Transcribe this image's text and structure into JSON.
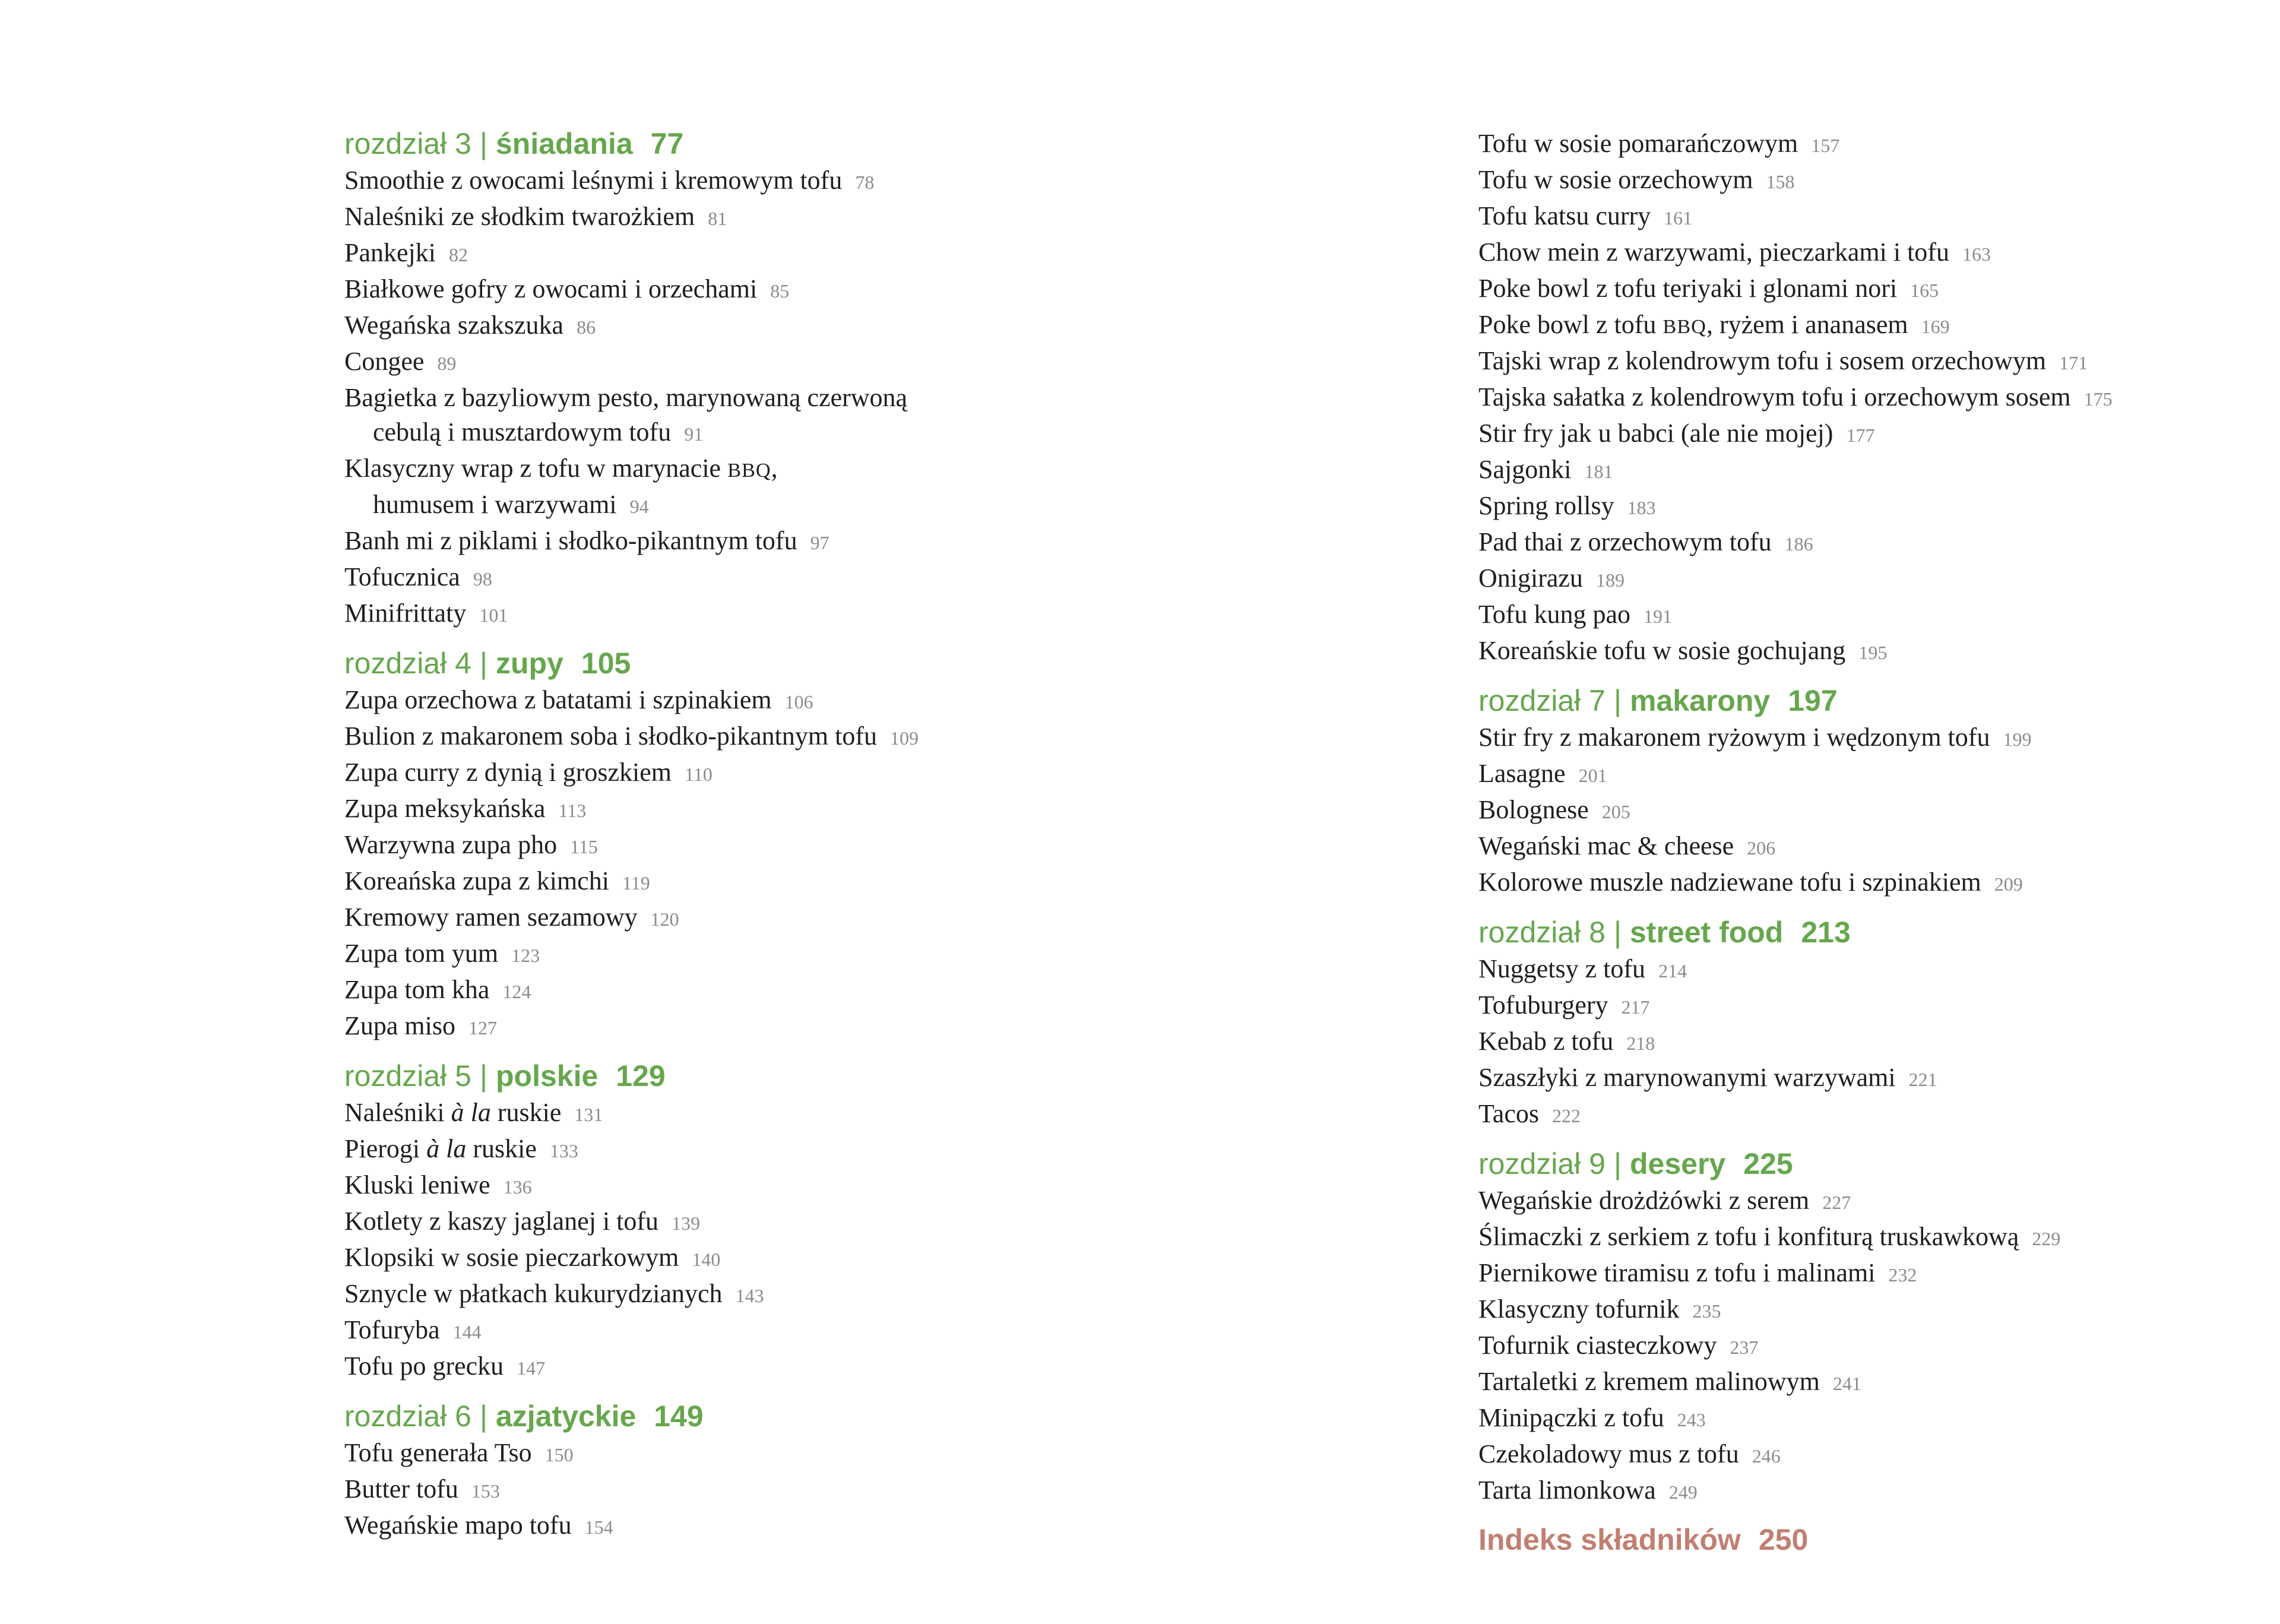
{
  "colors": {
    "background": "#ffffff",
    "chapter_green": "#66a74d",
    "index_salmon": "#c17f71",
    "entry_text": "#1f1f1f",
    "page_number_gray": "#8b8b8b"
  },
  "toc": {
    "columns": [
      {
        "name": "left",
        "blocks": [
          {
            "type": "chapter",
            "prefix": "rozdział 3",
            "separator": "|",
            "name": "śniadania",
            "page": "77"
          },
          {
            "type": "entry",
            "lines": [
              [
                {
                  "t": "Smoothie z owocami leśnymi i kremowym tofu"
                }
              ]
            ],
            "page": "78"
          },
          {
            "type": "entry",
            "lines": [
              [
                {
                  "t": "Naleśniki ze słodkim twarożkiem"
                }
              ]
            ],
            "page": "81"
          },
          {
            "type": "entry",
            "lines": [
              [
                {
                  "t": "Pankejki"
                }
              ]
            ],
            "page": "82"
          },
          {
            "type": "entry",
            "lines": [
              [
                {
                  "t": "Białkowe gofry z owocami i orzechami"
                }
              ]
            ],
            "page": "85"
          },
          {
            "type": "entry",
            "lines": [
              [
                {
                  "t": "Wegańska szakszuka"
                }
              ]
            ],
            "page": "86"
          },
          {
            "type": "entry",
            "lines": [
              [
                {
                  "t": "Congee"
                }
              ]
            ],
            "page": "89"
          },
          {
            "type": "entry",
            "lines": [
              [
                {
                  "t": "Bagietka z bazyliowym pesto, marynowaną czerwoną"
                }
              ],
              [
                {
                  "t": "cebulą i musztardowym tofu"
                }
              ]
            ],
            "page": "91"
          },
          {
            "type": "entry",
            "lines": [
              [
                {
                  "t": "Klasyczny wrap z tofu w marynacie "
                },
                {
                  "t": "BBQ",
                  "style": "smallcaps"
                },
                {
                  "t": ","
                }
              ],
              [
                {
                  "t": "humusem i warzywami"
                }
              ]
            ],
            "page": "94"
          },
          {
            "type": "entry",
            "lines": [
              [
                {
                  "t": "Banh mi z piklami i słodko-pikantnym tofu"
                }
              ]
            ],
            "page": "97"
          },
          {
            "type": "entry",
            "lines": [
              [
                {
                  "t": "Tofucznica"
                }
              ]
            ],
            "page": "98"
          },
          {
            "type": "entry",
            "lines": [
              [
                {
                  "t": "Minifrittaty"
                }
              ]
            ],
            "page": "101"
          },
          {
            "type": "chapter",
            "prefix": "rozdział 4",
            "separator": "|",
            "name": "zupy",
            "page": "105"
          },
          {
            "type": "entry",
            "lines": [
              [
                {
                  "t": "Zupa orzechowa z batatami i szpinakiem"
                }
              ]
            ],
            "page": "106"
          },
          {
            "type": "entry",
            "lines": [
              [
                {
                  "t": "Bulion z makaronem soba i słodko-pikantnym tofu"
                }
              ]
            ],
            "page": "109"
          },
          {
            "type": "entry",
            "lines": [
              [
                {
                  "t": "Zupa curry z dynią i groszkiem"
                }
              ]
            ],
            "page": "110"
          },
          {
            "type": "entry",
            "lines": [
              [
                {
                  "t": "Zupa meksykańska"
                }
              ]
            ],
            "page": "113"
          },
          {
            "type": "entry",
            "lines": [
              [
                {
                  "t": "Warzywna zupa pho"
                }
              ]
            ],
            "page": "115"
          },
          {
            "type": "entry",
            "lines": [
              [
                {
                  "t": "Koreańska zupa z kimchi"
                }
              ]
            ],
            "page": "119"
          },
          {
            "type": "entry",
            "lines": [
              [
                {
                  "t": "Kremowy ramen sezamowy"
                }
              ]
            ],
            "page": "120"
          },
          {
            "type": "entry",
            "lines": [
              [
                {
                  "t": "Zupa tom yum"
                }
              ]
            ],
            "page": "123"
          },
          {
            "type": "entry",
            "lines": [
              [
                {
                  "t": "Zupa tom kha"
                }
              ]
            ],
            "page": "124"
          },
          {
            "type": "entry",
            "lines": [
              [
                {
                  "t": "Zupa miso"
                }
              ]
            ],
            "page": "127"
          },
          {
            "type": "chapter",
            "prefix": "rozdział 5",
            "separator": "|",
            "name": "polskie",
            "page": "129"
          },
          {
            "type": "entry",
            "lines": [
              [
                {
                  "t": "Naleśniki "
                },
                {
                  "t": "à la",
                  "style": "italic"
                },
                {
                  "t": " ruskie"
                }
              ]
            ],
            "page": "131"
          },
          {
            "type": "entry",
            "lines": [
              [
                {
                  "t": "Pierogi "
                },
                {
                  "t": "à la",
                  "style": "italic"
                },
                {
                  "t": " ruskie"
                }
              ]
            ],
            "page": "133"
          },
          {
            "type": "entry",
            "lines": [
              [
                {
                  "t": "Kluski leniwe"
                }
              ]
            ],
            "page": "136"
          },
          {
            "type": "entry",
            "lines": [
              [
                {
                  "t": "Kotlety z kaszy jaglanej i tofu"
                }
              ]
            ],
            "page": "139"
          },
          {
            "type": "entry",
            "lines": [
              [
                {
                  "t": "Klopsiki w sosie pieczarkowym"
                }
              ]
            ],
            "page": "140"
          },
          {
            "type": "entry",
            "lines": [
              [
                {
                  "t": "Sznycle w płatkach kukurydzianych"
                }
              ]
            ],
            "page": "143"
          },
          {
            "type": "entry",
            "lines": [
              [
                {
                  "t": "Tofuryba"
                }
              ]
            ],
            "page": "144"
          },
          {
            "type": "entry",
            "lines": [
              [
                {
                  "t": "Tofu po grecku"
                }
              ]
            ],
            "page": "147"
          },
          {
            "type": "chapter",
            "prefix": "rozdział 6",
            "separator": "|",
            "name": "azjatyckie",
            "page": "149"
          },
          {
            "type": "entry",
            "lines": [
              [
                {
                  "t": "Tofu generała Tso"
                }
              ]
            ],
            "page": "150"
          },
          {
            "type": "entry",
            "lines": [
              [
                {
                  "t": "Butter tofu"
                }
              ]
            ],
            "page": "153"
          },
          {
            "type": "entry",
            "lines": [
              [
                {
                  "t": "Wegańskie mapo tofu"
                }
              ]
            ],
            "page": "154"
          }
        ]
      },
      {
        "name": "right",
        "blocks": [
          {
            "type": "entry",
            "lines": [
              [
                {
                  "t": "Tofu w sosie pomarańczowym"
                }
              ]
            ],
            "page": "157"
          },
          {
            "type": "entry",
            "lines": [
              [
                {
                  "t": "Tofu w sosie orzechowym"
                }
              ]
            ],
            "page": "158"
          },
          {
            "type": "entry",
            "lines": [
              [
                {
                  "t": "Tofu katsu curry"
                }
              ]
            ],
            "page": "161"
          },
          {
            "type": "entry",
            "lines": [
              [
                {
                  "t": "Chow mein z warzywami, pieczarkami i tofu"
                }
              ]
            ],
            "page": "163"
          },
          {
            "type": "entry",
            "lines": [
              [
                {
                  "t": "Poke bowl z tofu teriyaki i glonami nori"
                }
              ]
            ],
            "page": "165"
          },
          {
            "type": "entry",
            "lines": [
              [
                {
                  "t": "Poke bowl z tofu "
                },
                {
                  "t": "BBQ",
                  "style": "smallcaps"
                },
                {
                  "t": ", ryżem i ananasem"
                }
              ]
            ],
            "page": "169"
          },
          {
            "type": "entry",
            "lines": [
              [
                {
                  "t": "Tajski wrap z kolendrowym tofu i sosem orzechowym"
                }
              ]
            ],
            "page": "171"
          },
          {
            "type": "entry",
            "lines": [
              [
                {
                  "t": "Tajska sałatka z kolendrowym tofu i orzechowym sosem"
                }
              ]
            ],
            "page": "175"
          },
          {
            "type": "entry",
            "lines": [
              [
                {
                  "t": "Stir fry jak u babci (ale nie mojej)"
                }
              ]
            ],
            "page": "177"
          },
          {
            "type": "entry",
            "lines": [
              [
                {
                  "t": "Sajgonki"
                }
              ]
            ],
            "page": "181"
          },
          {
            "type": "entry",
            "lines": [
              [
                {
                  "t": "Spring rollsy"
                }
              ]
            ],
            "page": "183"
          },
          {
            "type": "entry",
            "lines": [
              [
                {
                  "t": "Pad thai z orzechowym tofu"
                }
              ]
            ],
            "page": "186"
          },
          {
            "type": "entry",
            "lines": [
              [
                {
                  "t": "Onigirazu"
                }
              ]
            ],
            "page": "189"
          },
          {
            "type": "entry",
            "lines": [
              [
                {
                  "t": "Tofu kung pao"
                }
              ]
            ],
            "page": "191"
          },
          {
            "type": "entry",
            "lines": [
              [
                {
                  "t": "Koreańskie tofu w sosie gochujang"
                }
              ]
            ],
            "page": "195"
          },
          {
            "type": "chapter",
            "prefix": "rozdział 7",
            "separator": "|",
            "name": "makarony",
            "page": "197"
          },
          {
            "type": "entry",
            "lines": [
              [
                {
                  "t": "Stir fry z makaronem ryżowym i wędzonym tofu"
                }
              ]
            ],
            "page": "199"
          },
          {
            "type": "entry",
            "lines": [
              [
                {
                  "t": "Lasagne"
                }
              ]
            ],
            "page": "201"
          },
          {
            "type": "entry",
            "lines": [
              [
                {
                  "t": "Bolognese"
                }
              ]
            ],
            "page": "205"
          },
          {
            "type": "entry",
            "lines": [
              [
                {
                  "t": "Wegański mac & cheese"
                }
              ]
            ],
            "page": "206"
          },
          {
            "type": "entry",
            "lines": [
              [
                {
                  "t": "Kolorowe muszle nadziewane tofu i szpinakiem"
                }
              ]
            ],
            "page": "209"
          },
          {
            "type": "chapter",
            "prefix": "rozdział 8",
            "separator": "|",
            "name": "street food",
            "page": "213"
          },
          {
            "type": "entry",
            "lines": [
              [
                {
                  "t": "Nuggetsy z tofu"
                }
              ]
            ],
            "page": "214"
          },
          {
            "type": "entry",
            "lines": [
              [
                {
                  "t": "Tofuburgery"
                }
              ]
            ],
            "page": "217"
          },
          {
            "type": "entry",
            "lines": [
              [
                {
                  "t": "Kebab z tofu"
                }
              ]
            ],
            "page": "218"
          },
          {
            "type": "entry",
            "lines": [
              [
                {
                  "t": "Szaszłyki z marynowanymi warzywami"
                }
              ]
            ],
            "page": "221"
          },
          {
            "type": "entry",
            "lines": [
              [
                {
                  "t": "Tacos"
                }
              ]
            ],
            "page": "222"
          },
          {
            "type": "chapter",
            "prefix": "rozdział 9",
            "separator": "|",
            "name": "desery",
            "page": "225"
          },
          {
            "type": "entry",
            "lines": [
              [
                {
                  "t": "Wegańskie drożdżówki z serem"
                }
              ]
            ],
            "page": "227"
          },
          {
            "type": "entry",
            "lines": [
              [
                {
                  "t": "Ślimaczki z serkiem z tofu i konfiturą truskawkową"
                }
              ]
            ],
            "page": "229"
          },
          {
            "type": "entry",
            "lines": [
              [
                {
                  "t": "Piernikowe tiramisu z tofu i malinami"
                }
              ]
            ],
            "page": "232"
          },
          {
            "type": "entry",
            "lines": [
              [
                {
                  "t": "Klasyczny tofurnik"
                }
              ]
            ],
            "page": "235"
          },
          {
            "type": "entry",
            "lines": [
              [
                {
                  "t": "Tofurnik ciasteczkowy"
                }
              ]
            ],
            "page": "237"
          },
          {
            "type": "entry",
            "lines": [
              [
                {
                  "t": "Tartaletki z kremem malinowym"
                }
              ]
            ],
            "page": "241"
          },
          {
            "type": "entry",
            "lines": [
              [
                {
                  "t": "Minipączki z tofu"
                }
              ]
            ],
            "page": "243"
          },
          {
            "type": "entry",
            "lines": [
              [
                {
                  "t": "Czekoladowy mus z tofu"
                }
              ]
            ],
            "page": "246"
          },
          {
            "type": "entry",
            "lines": [
              [
                {
                  "t": "Tarta limonkowa"
                }
              ]
            ],
            "page": "249"
          },
          {
            "type": "index",
            "label": "Indeks składników",
            "page": "250"
          }
        ]
      }
    ]
  }
}
